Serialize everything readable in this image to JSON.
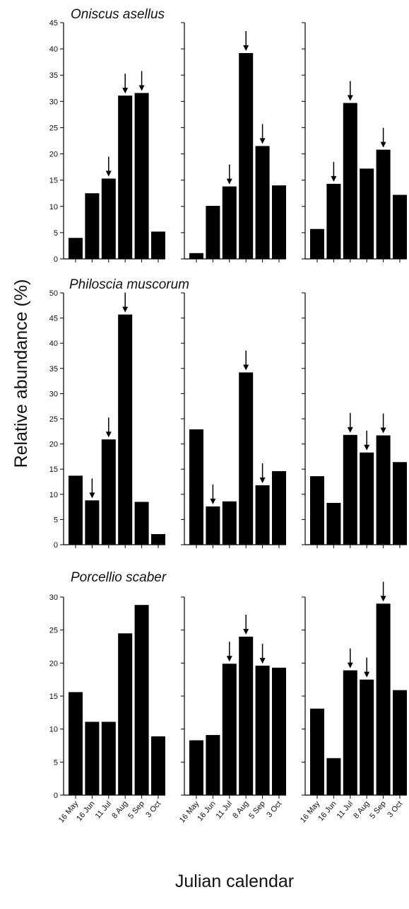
{
  "chart_data": {
    "type": "bar",
    "bar_color": "#000000",
    "ylabel": "Relative abundance (%)",
    "xlabel": "Julian calendar",
    "categories": [
      "16 May",
      "16 Jun",
      "11 Jul",
      "8 Aug",
      "5 Sep",
      "3 Oct"
    ],
    "rows": [
      {
        "species": "Oniscus asellus",
        "ylim": [
          0,
          45
        ],
        "yticks": [
          "0",
          "5",
          "10",
          "15",
          "20",
          "25",
          "30",
          "35",
          "40",
          "45"
        ],
        "panels": [
          {
            "values": [
              4,
              12.5,
              15.3,
              31.1,
              31.6,
              5.2
            ],
            "arrows": [
              2,
              3,
              4
            ]
          },
          {
            "values": [
              1.1,
              10.1,
              13.8,
              39.2,
              21.5,
              14.0
            ],
            "arrows": [
              2,
              3,
              4
            ]
          },
          {
            "values": [
              5.7,
              14.3,
              29.7,
              17.2,
              20.8,
              12.2
            ],
            "arrows": [
              1,
              2,
              4
            ]
          }
        ]
      },
      {
        "species": "Philoscia muscorum",
        "ylim": [
          0,
          50
        ],
        "yticks": [
          "0",
          "5",
          "10",
          "15",
          "20",
          "25",
          "30",
          "35",
          "40",
          "45",
          "50"
        ],
        "panels": [
          {
            "values": [
              13.7,
              8.8,
              20.9,
              45.7,
              8.5,
              2.1
            ],
            "arrows": [
              1,
              2,
              3
            ]
          },
          {
            "values": [
              22.9,
              7.6,
              8.6,
              34.2,
              11.8,
              14.6
            ],
            "arrows": [
              1,
              3,
              4
            ]
          },
          {
            "values": [
              13.6,
              8.3,
              21.8,
              18.3,
              21.7,
              16.4
            ],
            "arrows": [
              2,
              3,
              4
            ]
          }
        ]
      },
      {
        "species": "Porcellio scaber",
        "ylim": [
          0,
          30
        ],
        "yticks": [
          "0",
          "5",
          "10",
          "15",
          "20",
          "25",
          "30"
        ],
        "panels": [
          {
            "values": [
              15.6,
              11.1,
              11.1,
              24.5,
              28.8,
              8.9
            ],
            "arrows": []
          },
          {
            "values": [
              8.3,
              9.1,
              19.9,
              24.0,
              19.6,
              19.3
            ],
            "arrows": [
              2,
              3,
              4
            ]
          },
          {
            "values": [
              13.1,
              5.6,
              18.9,
              17.5,
              29.0,
              15.9
            ],
            "arrows": [
              2,
              3,
              4
            ]
          }
        ]
      }
    ]
  }
}
